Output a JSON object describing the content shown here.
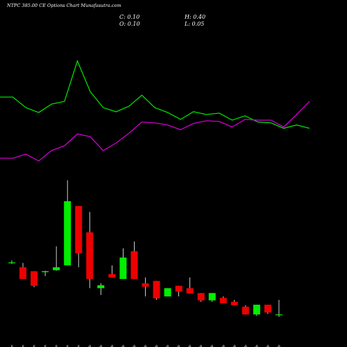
{
  "chart_data": {
    "type": "candlestick",
    "title": "NTPC 385.00 CE Options Chart Munafasutra.com",
    "annotations": [
      "C: 0.10",
      "H: 0.40",
      "O: 0.10",
      "L: 0.05"
    ],
    "categories": [
      "16 Jan",
      "19 Jan",
      "21 Jan",
      "22 Jan",
      "27 Jan",
      "29 Jan",
      "30 Jan",
      "01 Feb",
      "02 Feb",
      "03 Feb",
      "04 Feb",
      "05 Feb",
      "06 Feb",
      "09 Feb",
      "10 Feb",
      "11 Feb",
      "12 Feb",
      "13 Feb",
      "16 Feb",
      "17 Feb",
      "18 Feb",
      "19 Feb",
      "20 Feb",
      "23 Feb",
      "24 Feb"
    ],
    "open": [
      1.16,
      1.07,
      0.99,
      0.97,
      1.01,
      1.11,
      2.33,
      1.79,
      0.64,
      0.93,
      0.83,
      1.4,
      0.74,
      0.79,
      0.47,
      0.69,
      0.64,
      0.54,
      0.39,
      0.44,
      0.36,
      0.26,
      0.1,
      0.3,
      0.1
    ],
    "high": [
      1.21,
      1.16,
      0.99,
      1.0,
      1.5,
      2.86,
      2.33,
      2.21,
      0.74,
      1.11,
      1.46,
      1.6,
      0.86,
      0.79,
      0.64,
      0.69,
      0.86,
      0.54,
      0.54,
      0.47,
      0.4,
      0.29,
      0.3,
      0.3,
      0.4
    ],
    "low": [
      1.14,
      0.83,
      0.66,
      0.89,
      1.0,
      1.11,
      1.07,
      0.64,
      0.5,
      0.86,
      0.83,
      0.83,
      0.47,
      0.4,
      0.47,
      0.47,
      0.53,
      0.36,
      0.36,
      0.33,
      0.29,
      0.1,
      0.07,
      0.11,
      0.05
    ],
    "close": [
      1.17,
      0.83,
      0.69,
      0.99,
      1.07,
      2.43,
      1.36,
      0.83,
      0.7,
      0.86,
      1.27,
      0.83,
      0.67,
      0.43,
      0.64,
      0.57,
      0.53,
      0.39,
      0.54,
      0.33,
      0.29,
      0.1,
      0.3,
      0.14,
      0.1
    ],
    "up_color": "#00ee00",
    "down_color": "#ee0000",
    "ylim": [
      -0.57,
      3.0
    ],
    "series": [
      {
        "color": "#00dd00",
        "axis": "y2",
        "values": [
          66.7,
          66.7,
          58.3,
          54.4,
          61.1,
          63.3,
          95.6,
          71.1,
          58.3,
          55,
          59.4,
          68.3,
          58.3,
          54.4,
          48.9,
          55,
          52.8,
          53.9,
          48.3,
          51.7,
          46.7,
          46.1,
          41.7,
          44.4,
          41.7
        ]
      },
      {
        "color": "#cc00cc",
        "axis": "y2",
        "values": [
          17.8,
          17.8,
          21.1,
          15.6,
          23.9,
          27.8,
          37.2,
          35,
          23.9,
          30,
          37.8,
          46.7,
          46.1,
          44.4,
          40.6,
          45.6,
          47.8,
          47.2,
          42.8,
          48.9,
          48.3,
          48.3,
          42.8,
          52.8,
          63.3
        ]
      }
    ],
    "y2lim": [
      0,
      100
    ]
  }
}
